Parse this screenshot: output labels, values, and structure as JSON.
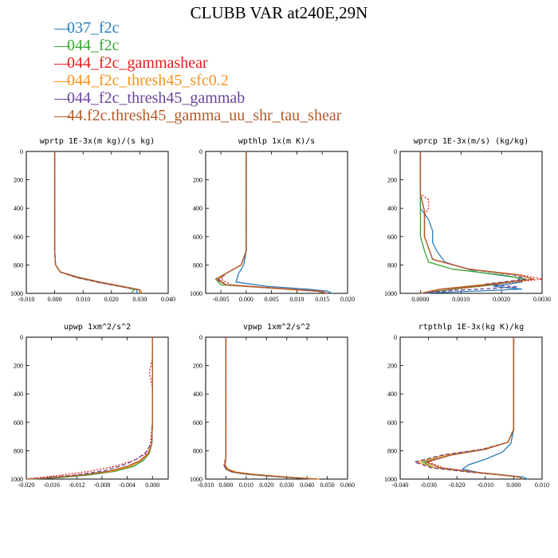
{
  "page": {
    "title": "CLUBB VAR at240E,29N"
  },
  "legend": [
    {
      "label": "037_f2c",
      "color": "#2a7db8",
      "dash": "solid"
    },
    {
      "label": "044_f2c",
      "color": "#3aa535",
      "dash": "solid"
    },
    {
      "label": "044_f2c_gammashear",
      "color": "#e3211f",
      "dash": "dotted"
    },
    {
      "label": "044_f2c_thresh45_sfc0.2",
      "color": "#f7931e",
      "dash": "solid"
    },
    {
      "label": "044_f2c_thresh45_gammab",
      "color": "#6b449a",
      "dash": "dashed"
    },
    {
      "label": "44.f2c.thresh45_gamma_uu_shr_tau_shear",
      "color": "#b35a2a",
      "dash": "solid"
    }
  ],
  "chart_data": [
    {
      "type": "line",
      "title": "wprtp  1E-3x(m kg)/(s kg)",
      "xlim": [
        -0.01,
        0.04
      ],
      "ylim": [
        1000,
        0
      ],
      "x_ticks": [
        "-0.010",
        "0.000",
        "0.010",
        "0.020",
        "0.030",
        "0.040"
      ],
      "y_ticks": [
        "0",
        "200",
        "400",
        "600",
        "800",
        "1000"
      ],
      "series": [
        {
          "x": [
            0,
            0,
            0.0003,
            0.002,
            0.008,
            0.016,
            0.024,
            0.029,
            0.029
          ],
          "y": [
            0,
            700,
            800,
            850,
            890,
            925,
            955,
            975,
            1000
          ]
        },
        {
          "x": [
            0,
            0,
            0.0003,
            0.002,
            0.009,
            0.017,
            0.025,
            0.028,
            0.027
          ],
          "y": [
            0,
            700,
            800,
            850,
            890,
            925,
            955,
            975,
            1000
          ]
        },
        {
          "x": [
            0,
            0,
            0.0003,
            0.002,
            0.008,
            0.017,
            0.025,
            0.03,
            0.03
          ],
          "y": [
            0,
            700,
            800,
            850,
            890,
            925,
            955,
            975,
            1000
          ]
        },
        {
          "x": [
            0,
            0,
            0.0003,
            0.002,
            0.008,
            0.016,
            0.024,
            0.03,
            0.031
          ],
          "y": [
            0,
            700,
            800,
            850,
            890,
            925,
            955,
            975,
            1000
          ]
        },
        {
          "x": [
            0,
            0,
            0.0003,
            0.002,
            0.008,
            0.016,
            0.024,
            0.03,
            0.03
          ],
          "y": [
            0,
            700,
            800,
            850,
            890,
            925,
            955,
            975,
            1000
          ]
        },
        {
          "x": [
            0,
            0,
            0.0003,
            0.002,
            0.009,
            0.017,
            0.025,
            0.03,
            0.03
          ],
          "y": [
            0,
            700,
            800,
            850,
            890,
            925,
            955,
            975,
            1000
          ]
        }
      ]
    },
    {
      "type": "line",
      "title": "wpthlp  1x(m K)/s",
      "xlim": [
        -0.008,
        0.02
      ],
      "ylim": [
        1000,
        0
      ],
      "x_ticks": [
        "-0.005",
        "0.000",
        "0.005",
        "0.010",
        "0.015",
        "0.020"
      ],
      "y_ticks": [
        "0",
        "200",
        "400",
        "600",
        "800",
        "1000"
      ],
      "series": [
        {
          "x": [
            0,
            0,
            -0.0005,
            -0.0015,
            -0.002,
            0.004,
            0.012,
            0.016,
            0.017
          ],
          "y": [
            0,
            700,
            800,
            860,
            920,
            950,
            970,
            985,
            1000
          ]
        },
        {
          "x": [
            0,
            0,
            -0.001,
            -0.004,
            -0.006,
            -0.005,
            0.006,
            0.014,
            0.016
          ],
          "y": [
            0,
            700,
            800,
            860,
            900,
            940,
            965,
            985,
            1000
          ]
        },
        {
          "x": [
            0,
            0,
            -0.001,
            -0.004,
            -0.005,
            -0.003,
            0.007,
            0.015,
            0.016
          ],
          "y": [
            0,
            700,
            800,
            860,
            900,
            940,
            965,
            985,
            1000
          ]
        },
        {
          "x": [
            0,
            0,
            -0.001,
            -0.004,
            -0.0055,
            -0.004,
            0.006,
            0.014,
            0.016
          ],
          "y": [
            0,
            700,
            800,
            860,
            900,
            940,
            965,
            985,
            1000
          ]
        },
        {
          "x": [
            0,
            0,
            -0.001,
            -0.004,
            -0.0055,
            -0.004,
            0.006,
            0.014,
            0.016
          ],
          "y": [
            0,
            700,
            800,
            860,
            900,
            940,
            965,
            985,
            1000
          ]
        },
        {
          "x": [
            0,
            0,
            -0.001,
            -0.004,
            -0.006,
            -0.004,
            0.006,
            0.014,
            0.016
          ],
          "y": [
            0,
            700,
            800,
            860,
            900,
            940,
            965,
            985,
            1000
          ]
        }
      ]
    },
    {
      "type": "line",
      "title": "wprcp  1E-3x(m/s) (kg/kg)",
      "xlim": [
        -0.0005,
        0.003
      ],
      "ylim": [
        1000,
        0
      ],
      "x_ticks": [
        "0.0000",
        "0.0010",
        "0.0020",
        "0.0030"
      ],
      "y_ticks": [
        "0",
        "200",
        "400",
        "600",
        "800",
        "1000"
      ],
      "series": [
        {
          "x": [
            0,
            0,
            0.0001,
            0.0002,
            0.0003,
            0.0003,
            0.0004,
            0.0006,
            0.0014,
            0.0024,
            0.0025,
            0.0018,
            0.0025,
            0.0
          ],
          "y": [
            0,
            400,
            440,
            480,
            560,
            640,
            700,
            780,
            850,
            890,
            920,
            950,
            970,
            1000
          ]
        },
        {
          "x": [
            0,
            0,
            0,
            0.0001,
            0.0002,
            0.0008,
            0.002,
            0.0026,
            0.0018,
            0.0008,
            0.0
          ],
          "y": [
            0,
            500,
            600,
            700,
            780,
            830,
            870,
            900,
            940,
            970,
            1000
          ]
        },
        {
          "x": [
            0,
            0,
            0.0002,
            0.0002,
            0.0001,
            0.0001,
            0.0003,
            0.0012,
            0.0025,
            0.003,
            0.002,
            0.001,
            0.0
          ],
          "y": [
            0,
            300,
            340,
            400,
            450,
            600,
            760,
            830,
            870,
            900,
            930,
            965,
            1000
          ]
        },
        {
          "x": [
            0,
            0,
            0.0001,
            0.0001,
            0.0003,
            0.0012,
            0.0024,
            0.0028,
            0.0015,
            0.0005,
            0.0
          ],
          "y": [
            0,
            300,
            420,
            600,
            760,
            830,
            870,
            900,
            940,
            970,
            1000
          ]
        },
        {
          "x": [
            0,
            0,
            0.0001,
            0.0001,
            0.0003,
            0.0012,
            0.0023,
            0.0026,
            0.0016,
            0.0024,
            0.0008,
            0.0
          ],
          "y": [
            0,
            300,
            420,
            600,
            760,
            830,
            870,
            900,
            935,
            955,
            980,
            1000
          ]
        },
        {
          "x": [
            0,
            0,
            0.0001,
            0.0001,
            0.0003,
            0.0012,
            0.0024,
            0.0028,
            0.0016,
            0.0005,
            0.0
          ],
          "y": [
            0,
            300,
            420,
            600,
            760,
            830,
            870,
            900,
            940,
            970,
            1000
          ]
        }
      ]
    },
    {
      "type": "line",
      "title": "upwp  1xm^2/s^2",
      "xlim": [
        -0.02,
        0.0025
      ],
      "ylim": [
        1000,
        0
      ],
      "x_ticks": [
        "-0.020",
        "-0.016",
        "-0.012",
        "-0.008",
        "-0.004",
        "0.000"
      ],
      "y_ticks": [
        "0",
        "200",
        "400",
        "600",
        "800",
        "1000"
      ],
      "series": [
        {
          "x": [
            0,
            0,
            -0.0001,
            -0.0005,
            -0.0015,
            -0.003,
            -0.006,
            -0.01,
            -0.015,
            -0.019
          ],
          "y": [
            0,
            600,
            750,
            820,
            870,
            910,
            945,
            970,
            990,
            1000
          ]
        },
        {
          "x": [
            0,
            0,
            -0.0001,
            -0.0005,
            -0.0015,
            -0.003,
            -0.006,
            -0.01,
            -0.015,
            -0.02
          ],
          "y": [
            0,
            600,
            750,
            820,
            870,
            910,
            945,
            970,
            990,
            1000
          ]
        },
        {
          "x": [
            0,
            0,
            -0.0005,
            0,
            0,
            -0.0003,
            -0.001,
            -0.003,
            -0.006,
            -0.01,
            -0.015,
            -0.02
          ],
          "y": [
            0,
            150,
            250,
            350,
            600,
            750,
            820,
            870,
            910,
            945,
            975,
            1000
          ]
        },
        {
          "x": [
            0,
            0,
            -0.0001,
            -0.0006,
            -0.0018,
            -0.0035,
            -0.0065,
            -0.011,
            -0.016,
            -0.02
          ],
          "y": [
            0,
            600,
            750,
            820,
            870,
            910,
            945,
            970,
            990,
            1000
          ]
        },
        {
          "x": [
            0,
            0,
            -0.0001,
            -0.001,
            -0.0025,
            -0.0045,
            -0.0075,
            -0.012,
            -0.017,
            -0.02
          ],
          "y": [
            0,
            600,
            740,
            810,
            860,
            900,
            940,
            970,
            990,
            1000
          ]
        },
        {
          "x": [
            0,
            0,
            -0.0001,
            -0.0007,
            -0.002,
            -0.004,
            -0.007,
            -0.011,
            -0.016,
            -0.02
          ],
          "y": [
            0,
            600,
            750,
            820,
            870,
            910,
            945,
            970,
            990,
            1000
          ]
        }
      ]
    },
    {
      "type": "line",
      "title": "vpwp  1xm^2/s^2",
      "xlim": [
        -0.01,
        0.06
      ],
      "ylim": [
        1000,
        0
      ],
      "x_ticks": [
        "-0.010",
        "0.000",
        "0.010",
        "0.020",
        "0.030",
        "0.040",
        "0.050",
        "0.060"
      ],
      "y_ticks": [
        "0",
        "200",
        "400",
        "600",
        "800",
        "1000"
      ],
      "series": [
        {
          "x": [
            0,
            0,
            -0.0005,
            0,
            0.003,
            0.01,
            0.022,
            0.035,
            0.043
          ],
          "y": [
            0,
            850,
            900,
            930,
            950,
            965,
            980,
            992,
            1000
          ]
        },
        {
          "x": [
            0,
            0,
            -0.0005,
            0,
            0.003,
            0.01,
            0.022,
            0.035,
            0.044
          ],
          "y": [
            0,
            850,
            900,
            930,
            950,
            965,
            980,
            992,
            1000
          ]
        },
        {
          "x": [
            0,
            0,
            -0.001,
            0,
            0.003,
            0.011,
            0.023,
            0.036,
            0.045
          ],
          "y": [
            0,
            850,
            900,
            930,
            950,
            965,
            980,
            992,
            1000
          ]
        },
        {
          "x": [
            0,
            0,
            -0.0005,
            0.001,
            0.005,
            0.013,
            0.025,
            0.037,
            0.046
          ],
          "y": [
            0,
            850,
            900,
            930,
            950,
            965,
            980,
            992,
            1000
          ]
        },
        {
          "x": [
            0,
            0,
            -0.001,
            0,
            0.003,
            0.01,
            0.022,
            0.035,
            0.044
          ],
          "y": [
            0,
            850,
            900,
            930,
            950,
            965,
            980,
            992,
            1000
          ]
        },
        {
          "x": [
            0,
            0,
            -0.0005,
            0.0005,
            0.004,
            0.012,
            0.024,
            0.036,
            0.045
          ],
          "y": [
            0,
            850,
            900,
            930,
            950,
            965,
            980,
            992,
            1000
          ]
        }
      ]
    },
    {
      "type": "line",
      "title": "rtpthlp  1E-3x(kg K)/kg",
      "xlim": [
        -0.04,
        0.01
      ],
      "ylim": [
        1000,
        0
      ],
      "x_ticks": [
        "-0.040",
        "-0.030",
        "-0.020",
        "-0.010",
        "0.000",
        "0.010"
      ],
      "y_ticks": [
        "0",
        "200",
        "400",
        "600",
        "800",
        "1000"
      ],
      "series": [
        {
          "x": [
            0,
            0,
            -0.001,
            -0.004,
            -0.01,
            -0.016,
            -0.018,
            -0.012,
            -0.005,
            0.003,
            0.005
          ],
          "y": [
            0,
            650,
            750,
            810,
            860,
            900,
            930,
            955,
            970,
            985,
            1000
          ]
        },
        {
          "x": [
            0,
            0,
            -0.002,
            -0.01,
            -0.022,
            -0.032,
            -0.028,
            -0.015,
            -0.005,
            0.002,
            0.003
          ],
          "y": [
            0,
            650,
            740,
            790,
            830,
            880,
            920,
            950,
            970,
            985,
            1000
          ]
        },
        {
          "x": [
            0,
            0,
            -0.002,
            -0.01,
            -0.022,
            -0.03,
            -0.025,
            -0.014,
            -0.004,
            0.002,
            0.003
          ],
          "y": [
            0,
            650,
            740,
            790,
            830,
            880,
            920,
            950,
            970,
            985,
            1000
          ]
        },
        {
          "x": [
            0,
            0,
            -0.002,
            -0.011,
            -0.024,
            -0.034,
            -0.028,
            -0.015,
            -0.005,
            0.002,
            0.003
          ],
          "y": [
            0,
            650,
            740,
            790,
            830,
            880,
            920,
            950,
            970,
            985,
            1000
          ]
        },
        {
          "x": [
            0,
            0,
            -0.002,
            -0.011,
            -0.025,
            -0.035,
            -0.029,
            -0.016,
            -0.005,
            0.002,
            0.003
          ],
          "y": [
            0,
            650,
            740,
            790,
            830,
            880,
            920,
            950,
            970,
            985,
            1000
          ]
        },
        {
          "x": [
            0,
            0,
            -0.002,
            -0.01,
            -0.022,
            -0.031,
            -0.026,
            -0.014,
            -0.004,
            0.002,
            0.003
          ],
          "y": [
            0,
            650,
            740,
            790,
            830,
            880,
            920,
            950,
            970,
            985,
            1000
          ]
        }
      ]
    }
  ]
}
